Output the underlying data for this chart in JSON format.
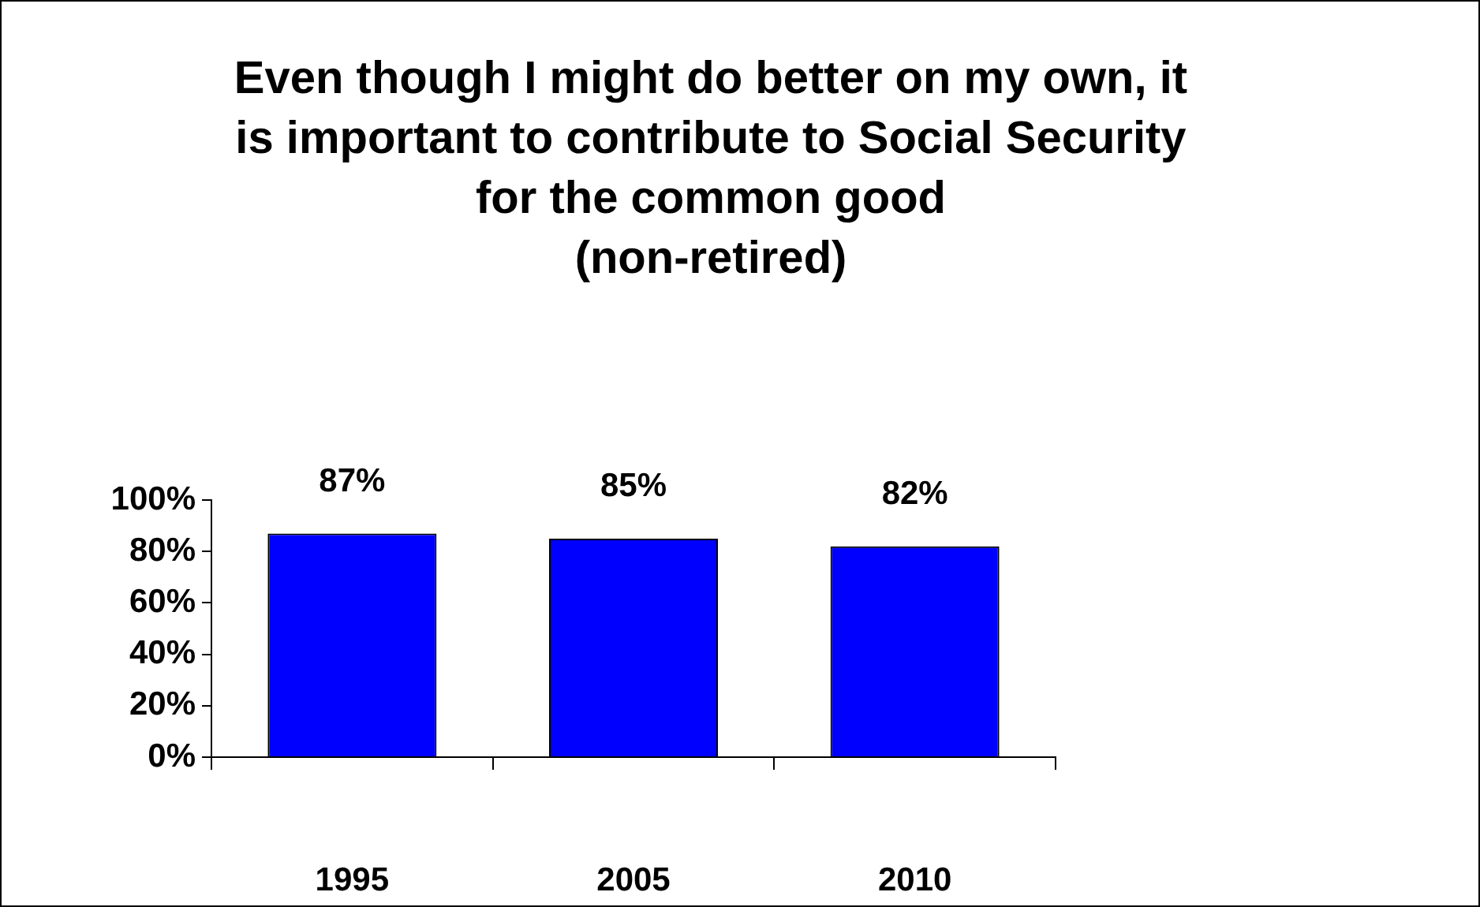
{
  "chart_data": {
    "type": "bar",
    "title": "Even though I might do better on my own, it is important to contribute to Social Security for the common good",
    "subtitle": "(non-retired)",
    "categories": [
      "1995",
      "2005",
      "2010"
    ],
    "values": [
      87,
      85,
      82
    ],
    "value_labels": [
      "87%",
      "85%",
      "82%"
    ],
    "color": "#0000ff",
    "ylim": [
      0,
      100
    ],
    "yticks": [
      {
        "value": 0,
        "label": "0%"
      },
      {
        "value": 20,
        "label": "20%"
      },
      {
        "value": 40,
        "label": "40%"
      },
      {
        "value": 60,
        "label": "60%"
      },
      {
        "value": 80,
        "label": "80%"
      },
      {
        "value": 100,
        "label": "100%"
      }
    ],
    "grid": false,
    "legend": false
  }
}
